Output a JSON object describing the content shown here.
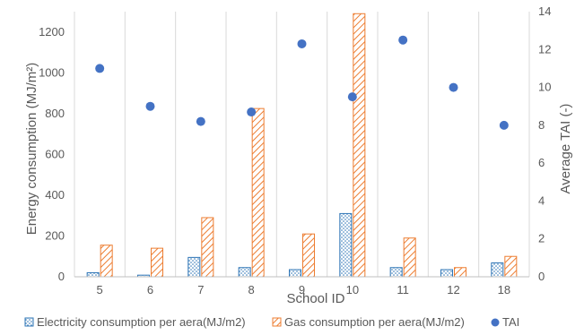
{
  "chart_data": {
    "type": "bar",
    "categories": [
      "5",
      "6",
      "7",
      "8",
      "9",
      "10",
      "11",
      "12",
      "18"
    ],
    "xlabel": "School ID",
    "ylabel": "Energy consumption (MJ/m²)",
    "ylabel_right": "Average TAI (-)",
    "ylim": [
      0,
      1300
    ],
    "yticks": [
      0,
      200,
      400,
      600,
      800,
      1000,
      1200
    ],
    "ylim_right": [
      0,
      14
    ],
    "yticks_right": [
      0,
      2,
      4,
      6,
      8,
      10,
      12,
      14
    ],
    "grid": "vertical lines between categories",
    "legend_position": "bottom",
    "series": [
      {
        "name": "Electricity consumption per aera(MJ/m2)",
        "type": "bar",
        "axis": "left",
        "pattern": "dots",
        "color": "#2E75B6",
        "values": [
          20,
          8,
          95,
          45,
          35,
          310,
          45,
          35,
          68
        ]
      },
      {
        "name": "Gas consumption per aera(MJ/m2)",
        "type": "bar",
        "axis": "left",
        "pattern": "diagonal",
        "color": "#ED7D31",
        "values": [
          155,
          140,
          290,
          825,
          210,
          1290,
          190,
          45,
          100
        ]
      },
      {
        "name": "TAI",
        "type": "scatter",
        "axis": "right",
        "color": "#4472C4",
        "values": [
          11.0,
          9.0,
          8.2,
          8.7,
          12.3,
          9.5,
          12.5,
          10.0,
          8.0
        ]
      }
    ]
  }
}
